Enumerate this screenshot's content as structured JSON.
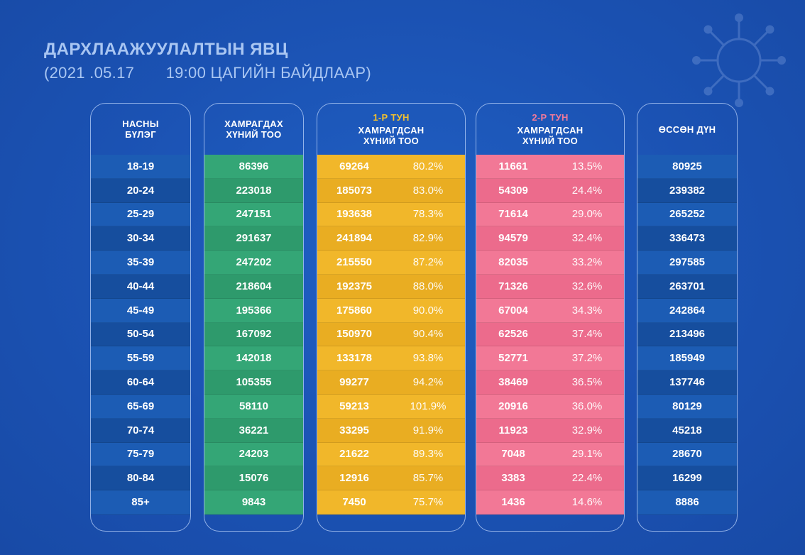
{
  "header": {
    "title": "ДАРХЛААЖУУЛАЛТЫН ЯВЦ",
    "date": "(2021 .05.17",
    "time": "19:00 ЦАГИЙН БАЙДЛААР)"
  },
  "columns": {
    "age": {
      "label_1": "НАСНЫ",
      "label_2": "БҮЛЭГ"
    },
    "target": {
      "label_1": "ХАМРАГДАХ",
      "label_2": "ХҮНИЙ ТОО"
    },
    "dose1": {
      "dose": "1-Р ТУН",
      "label_1": "ХАМРАГДСАН",
      "label_2": "ХҮНИЙ ТОО"
    },
    "dose2": {
      "dose": "2-Р ТУН",
      "label_1": "ХАМРАГДСАН",
      "label_2": "ХҮНИЙ ТОО"
    },
    "total": {
      "label_1": "ӨССӨН ДҮН"
    }
  },
  "colors": {
    "background": "#1d54b5",
    "target": "#34a676",
    "dose1": "#f1b72a",
    "dose2": "#f27896"
  },
  "icons": {
    "decoration": "virus-icon"
  },
  "rows": [
    {
      "age": "18-19",
      "target": "86396",
      "d1": "69264",
      "d1_pct": "80.2%",
      "d2": "11661",
      "d2_pct": "13.5%",
      "total": "80925"
    },
    {
      "age": "20-24",
      "target": "223018",
      "d1": "185073",
      "d1_pct": "83.0%",
      "d2": "54309",
      "d2_pct": "24.4%",
      "total": "239382"
    },
    {
      "age": "25-29",
      "target": "247151",
      "d1": "193638",
      "d1_pct": "78.3%",
      "d2": "71614",
      "d2_pct": "29.0%",
      "total": "265252"
    },
    {
      "age": "30-34",
      "target": "291637",
      "d1": "241894",
      "d1_pct": "82.9%",
      "d2": "94579",
      "d2_pct": "32.4%",
      "total": "336473"
    },
    {
      "age": "35-39",
      "target": "247202",
      "d1": "215550",
      "d1_pct": "87.2%",
      "d2": "82035",
      "d2_pct": "33.2%",
      "total": "297585"
    },
    {
      "age": "40-44",
      "target": "218604",
      "d1": "192375",
      "d1_pct": "88.0%",
      "d2": "71326",
      "d2_pct": "32.6%",
      "total": "263701"
    },
    {
      "age": "45-49",
      "target": "195366",
      "d1": "175860",
      "d1_pct": "90.0%",
      "d2": "67004",
      "d2_pct": "34.3%",
      "total": "242864"
    },
    {
      "age": "50-54",
      "target": "167092",
      "d1": "150970",
      "d1_pct": "90.4%",
      "d2": "62526",
      "d2_pct": "37.4%",
      "total": "213496"
    },
    {
      "age": "55-59",
      "target": "142018",
      "d1": "133178",
      "d1_pct": "93.8%",
      "d2": "52771",
      "d2_pct": "37.2%",
      "total": "185949"
    },
    {
      "age": "60-64",
      "target": "105355",
      "d1": "99277",
      "d1_pct": "94.2%",
      "d2": "38469",
      "d2_pct": "36.5%",
      "total": "137746"
    },
    {
      "age": "65-69",
      "target": "58110",
      "d1": "59213",
      "d1_pct": "101.9%",
      "d2": "20916",
      "d2_pct": "36.0%",
      "total": "80129"
    },
    {
      "age": "70-74",
      "target": "36221",
      "d1": "33295",
      "d1_pct": "91.9%",
      "d2": "11923",
      "d2_pct": "32.9%",
      "total": "45218"
    },
    {
      "age": "75-79",
      "target": "24203",
      "d1": "21622",
      "d1_pct": "89.3%",
      "d2": "7048",
      "d2_pct": "29.1%",
      "total": "28670"
    },
    {
      "age": "80-84",
      "target": "15076",
      "d1": "12916",
      "d1_pct": "85.7%",
      "d2": "3383",
      "d2_pct": "22.4%",
      "total": "16299"
    },
    {
      "age": "85+",
      "target": "9843",
      "d1": "7450",
      "d1_pct": "75.7%",
      "d2": "1436",
      "d2_pct": "14.6%",
      "total": "8886"
    }
  ]
}
